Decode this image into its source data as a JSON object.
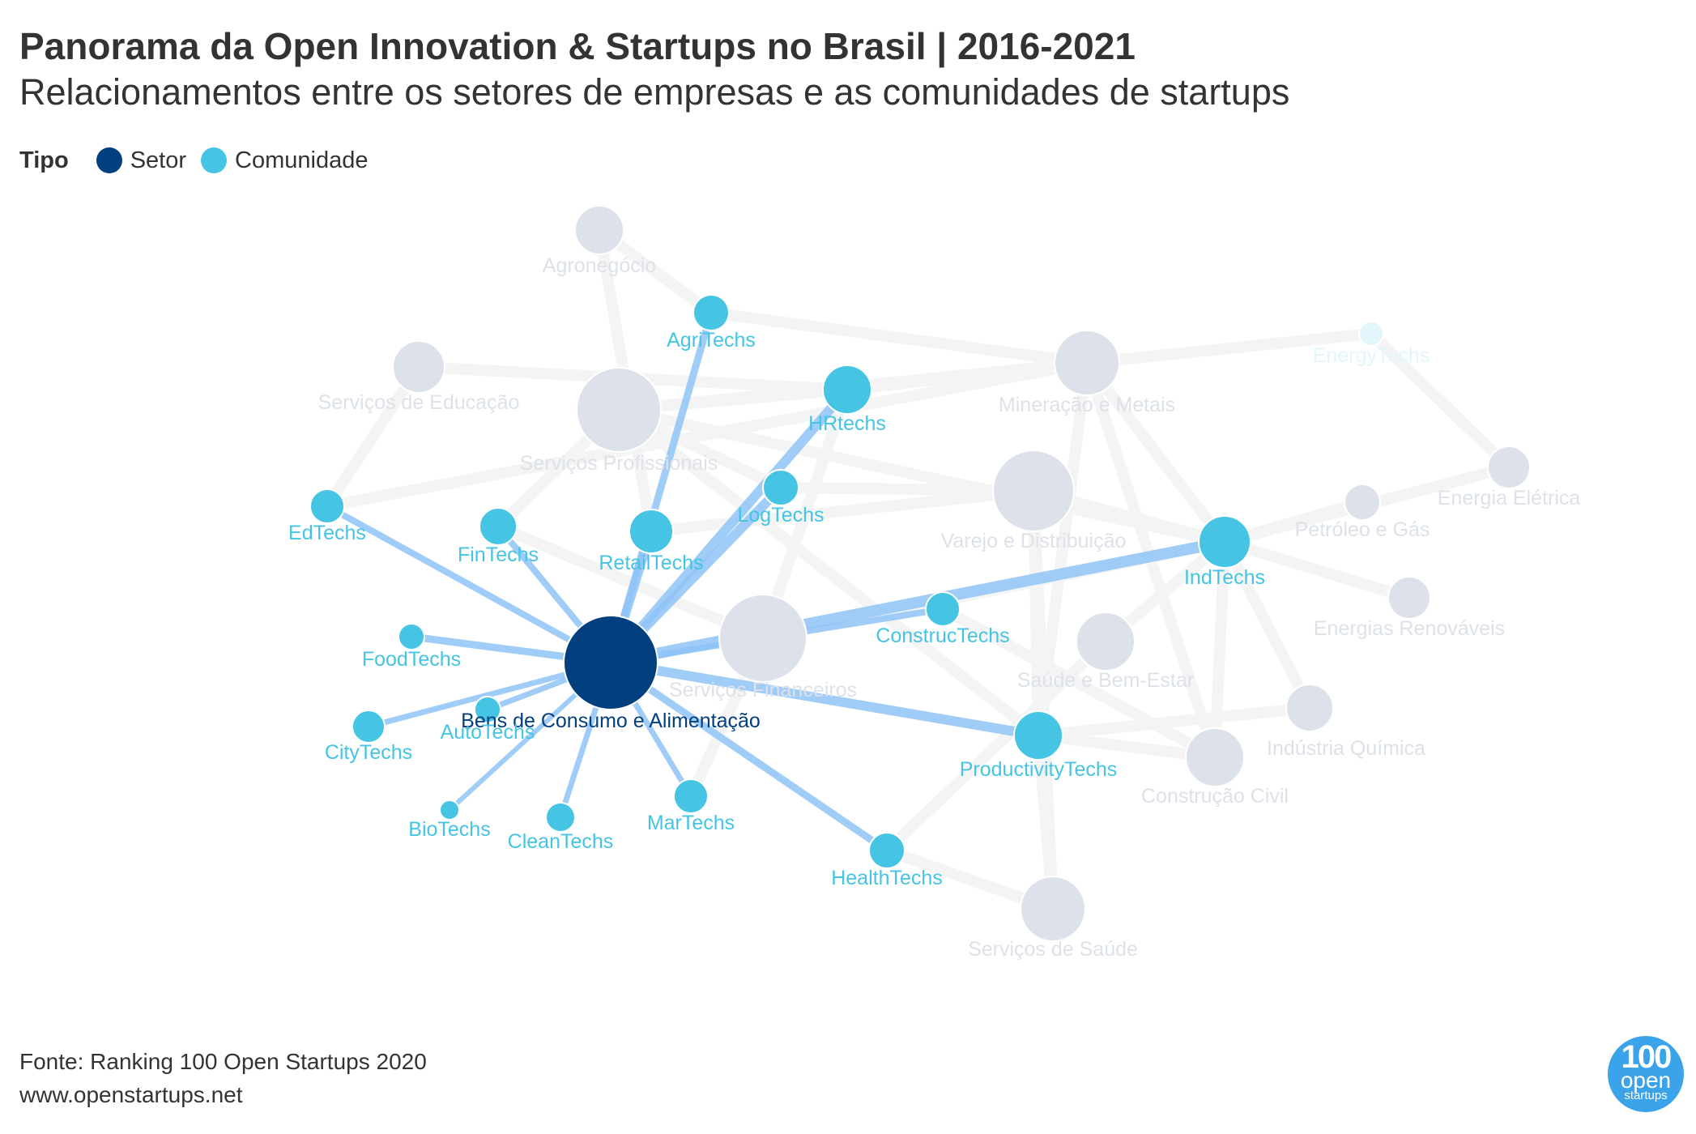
{
  "header": {
    "title": "Panorama da Open Innovation & Startups no Brasil | 2016-2021",
    "subtitle": "Relacionamentos entre os setores de empresas e as comunidades de startups"
  },
  "legend": {
    "title": "Tipo",
    "items": [
      {
        "label": "Setor",
        "color": "#013f7f"
      },
      {
        "label": "Comunidade",
        "color": "#45c4e3"
      }
    ]
  },
  "colors": {
    "setor_active": "#013f7f",
    "setor_faded": "#dde1e9",
    "comunidade": "#45c4e3",
    "comunidade_faded": "#e2f6fb",
    "edge_active": "#8fc3f7",
    "edge_faded": "#f4f4f4",
    "label_faded": "#dde1e9"
  },
  "selected_node": "Bens de Consumo e Alimentação",
  "nodes": [
    {
      "id": "Bens de Consumo e Alimentação",
      "type": "setor",
      "state": "active"
    },
    {
      "id": "Agronegócio",
      "type": "setor",
      "state": "faded"
    },
    {
      "id": "Serviços de Educação",
      "type": "setor",
      "state": "faded"
    },
    {
      "id": "Serviços Profissionais",
      "type": "setor",
      "state": "faded"
    },
    {
      "id": "Mineração e Metais",
      "type": "setor",
      "state": "faded"
    },
    {
      "id": "Varejo e Distribuição",
      "type": "setor",
      "state": "faded"
    },
    {
      "id": "Serviços Financeiros",
      "type": "setor",
      "state": "faded"
    },
    {
      "id": "Saúde e Bem-Estar",
      "type": "setor",
      "state": "faded"
    },
    {
      "id": "Energia Elétrica",
      "type": "setor",
      "state": "faded"
    },
    {
      "id": "Petróleo e Gás",
      "type": "setor",
      "state": "faded"
    },
    {
      "id": "Energias Renováveis",
      "type": "setor",
      "state": "faded"
    },
    {
      "id": "Indústria Química",
      "type": "setor",
      "state": "faded"
    },
    {
      "id": "Construção Civil",
      "type": "setor",
      "state": "faded"
    },
    {
      "id": "Serviços de Saúde",
      "type": "setor",
      "state": "faded"
    },
    {
      "id": "AgriTechs",
      "type": "comunidade",
      "state": "active"
    },
    {
      "id": "EnergyTechs",
      "type": "comunidade",
      "state": "faded"
    },
    {
      "id": "HRtechs",
      "type": "comunidade",
      "state": "active"
    },
    {
      "id": "LogTechs",
      "type": "comunidade",
      "state": "active"
    },
    {
      "id": "EdTechs",
      "type": "comunidade",
      "state": "active"
    },
    {
      "id": "FinTechs",
      "type": "comunidade",
      "state": "active"
    },
    {
      "id": "RetailTechs",
      "type": "comunidade",
      "state": "active"
    },
    {
      "id": "IndTechs",
      "type": "comunidade",
      "state": "active"
    },
    {
      "id": "ConstrucTechs",
      "type": "comunidade",
      "state": "active"
    },
    {
      "id": "FoodTechs",
      "type": "comunidade",
      "state": "active"
    },
    {
      "id": "AutoTechs",
      "type": "comunidade",
      "state": "active"
    },
    {
      "id": "CityTechs",
      "type": "comunidade",
      "state": "active"
    },
    {
      "id": "BioTechs",
      "type": "comunidade",
      "state": "active"
    },
    {
      "id": "CleanTechs",
      "type": "comunidade",
      "state": "active"
    },
    {
      "id": "MarTechs",
      "type": "comunidade",
      "state": "active"
    },
    {
      "id": "HealthTechs",
      "type": "comunidade",
      "state": "active"
    },
    {
      "id": "ProductivityTechs",
      "type": "comunidade",
      "state": "active"
    }
  ],
  "edges": [
    {
      "source": "Bens de Consumo e Alimentação",
      "target": "AgriTechs",
      "state": "active"
    },
    {
      "source": "Bens de Consumo e Alimentação",
      "target": "HRtechs",
      "state": "active"
    },
    {
      "source": "Bens de Consumo e Alimentação",
      "target": "LogTechs",
      "state": "active"
    },
    {
      "source": "Bens de Consumo e Alimentação",
      "target": "EdTechs",
      "state": "active"
    },
    {
      "source": "Bens de Consumo e Alimentação",
      "target": "FinTechs",
      "state": "active"
    },
    {
      "source": "Bens de Consumo e Alimentação",
      "target": "RetailTechs",
      "state": "active"
    },
    {
      "source": "Bens de Consumo e Alimentação",
      "target": "IndTechs",
      "state": "active"
    },
    {
      "source": "Bens de Consumo e Alimentação",
      "target": "ConstrucTechs",
      "state": "active"
    },
    {
      "source": "Bens de Consumo e Alimentação",
      "target": "FoodTechs",
      "state": "active"
    },
    {
      "source": "Bens de Consumo e Alimentação",
      "target": "AutoTechs",
      "state": "active"
    },
    {
      "source": "Bens de Consumo e Alimentação",
      "target": "CityTechs",
      "state": "active"
    },
    {
      "source": "Bens de Consumo e Alimentação",
      "target": "BioTechs",
      "state": "active"
    },
    {
      "source": "Bens de Consumo e Alimentação",
      "target": "CleanTechs",
      "state": "active"
    },
    {
      "source": "Bens de Consumo e Alimentação",
      "target": "MarTechs",
      "state": "active"
    },
    {
      "source": "Bens de Consumo e Alimentação",
      "target": "HealthTechs",
      "state": "active"
    },
    {
      "source": "Bens de Consumo e Alimentação",
      "target": "ProductivityTechs",
      "state": "active"
    },
    {
      "source": "Agronegócio",
      "target": "AgriTechs",
      "state": "faded"
    },
    {
      "source": "Agronegócio",
      "target": "RetailTechs",
      "state": "faded"
    },
    {
      "source": "AgriTechs",
      "target": "Mineração e Metais",
      "state": "faded"
    },
    {
      "source": "Serviços de Educação",
      "target": "EdTechs",
      "state": "faded"
    },
    {
      "source": "Serviços de Educação",
      "target": "HRtechs",
      "state": "faded"
    },
    {
      "source": "Serviços Profissionais",
      "target": "HRtechs",
      "state": "faded"
    },
    {
      "source": "Serviços Profissionais",
      "target": "FinTechs",
      "state": "faded"
    },
    {
      "source": "Serviços Profissionais",
      "target": "IndTechs",
      "state": "faded"
    },
    {
      "source": "Serviços Profissionais",
      "target": "ProductivityTechs",
      "state": "faded"
    },
    {
      "source": "Serviços Profissionais",
      "target": "Mineração e Metais",
      "state": "faded"
    },
    {
      "source": "Serviços Profissionais",
      "target": "LogTechs",
      "state": "faded"
    },
    {
      "source": "EdTechs",
      "target": "Mineração e Metais",
      "state": "faded"
    },
    {
      "source": "HRtechs",
      "target": "Mineração e Metais",
      "state": "faded"
    },
    {
      "source": "HRtechs",
      "target": "Serviços Financeiros",
      "state": "faded"
    },
    {
      "source": "Mineração e Metais",
      "target": "EnergyTechs",
      "state": "faded"
    },
    {
      "source": "Mineração e Metais",
      "target": "IndTechs",
      "state": "faded"
    },
    {
      "source": "Mineração e Metais",
      "target": "Construção Civil",
      "state": "faded"
    },
    {
      "source": "Mineração e Metais",
      "target": "ProductivityTechs",
      "state": "faded"
    },
    {
      "source": "EnergyTechs",
      "target": "Energia Elétrica",
      "state": "faded"
    },
    {
      "source": "Varejo e Distribuição",
      "target": "LogTechs",
      "state": "faded"
    },
    {
      "source": "Varejo e Distribuição",
      "target": "IndTechs",
      "state": "faded"
    },
    {
      "source": "Varejo e Distribuição",
      "target": "RetailTechs",
      "state": "faded"
    },
    {
      "source": "Varejo e Distribuição",
      "target": "ProductivityTechs",
      "state": "faded"
    },
    {
      "source": "Varejo e Distribuição",
      "target": "Serviços de Saúde",
      "state": "faded"
    },
    {
      "source": "IndTechs",
      "target": "Energia Elétrica",
      "state": "faded"
    },
    {
      "source": "IndTechs",
      "target": "Petróleo e Gás",
      "state": "faded"
    },
    {
      "source": "IndTechs",
      "target": "Energias Renováveis",
      "state": "faded"
    },
    {
      "source": "IndTechs",
      "target": "Indústria Química",
      "state": "faded"
    },
    {
      "source": "IndTechs",
      "target": "Construção Civil",
      "state": "faded"
    },
    {
      "source": "IndTechs",
      "target": "Serviços Financeiros",
      "state": "faded"
    },
    {
      "source": "IndTechs",
      "target": "Saúde e Bem-Estar",
      "state": "faded"
    },
    {
      "source": "ConstrucTechs",
      "target": "Construção Civil",
      "state": "faded"
    },
    {
      "source": "Saúde e Bem-Estar",
      "target": "HealthTechs",
      "state": "faded"
    },
    {
      "source": "ProductivityTechs",
      "target": "Indústria Química",
      "state": "faded"
    },
    {
      "source": "ProductivityTechs",
      "target": "Construção Civil",
      "state": "faded"
    },
    {
      "source": "ProductivityTechs",
      "target": "Serviços de Saúde",
      "state": "faded"
    },
    {
      "source": "HealthTechs",
      "target": "Serviços de Saúde",
      "state": "faded"
    },
    {
      "source": "Serviços Financeiros",
      "target": "FinTechs",
      "state": "faded"
    },
    {
      "source": "Serviços Financeiros",
      "target": "MarTechs",
      "state": "faded"
    }
  ],
  "footer": {
    "source": "Fonte: Ranking 100 Open Startups 2020",
    "url": "www.openstartups.net"
  },
  "brand_logo": {
    "line1": "100",
    "line2": "open",
    "line3": "startups"
  }
}
